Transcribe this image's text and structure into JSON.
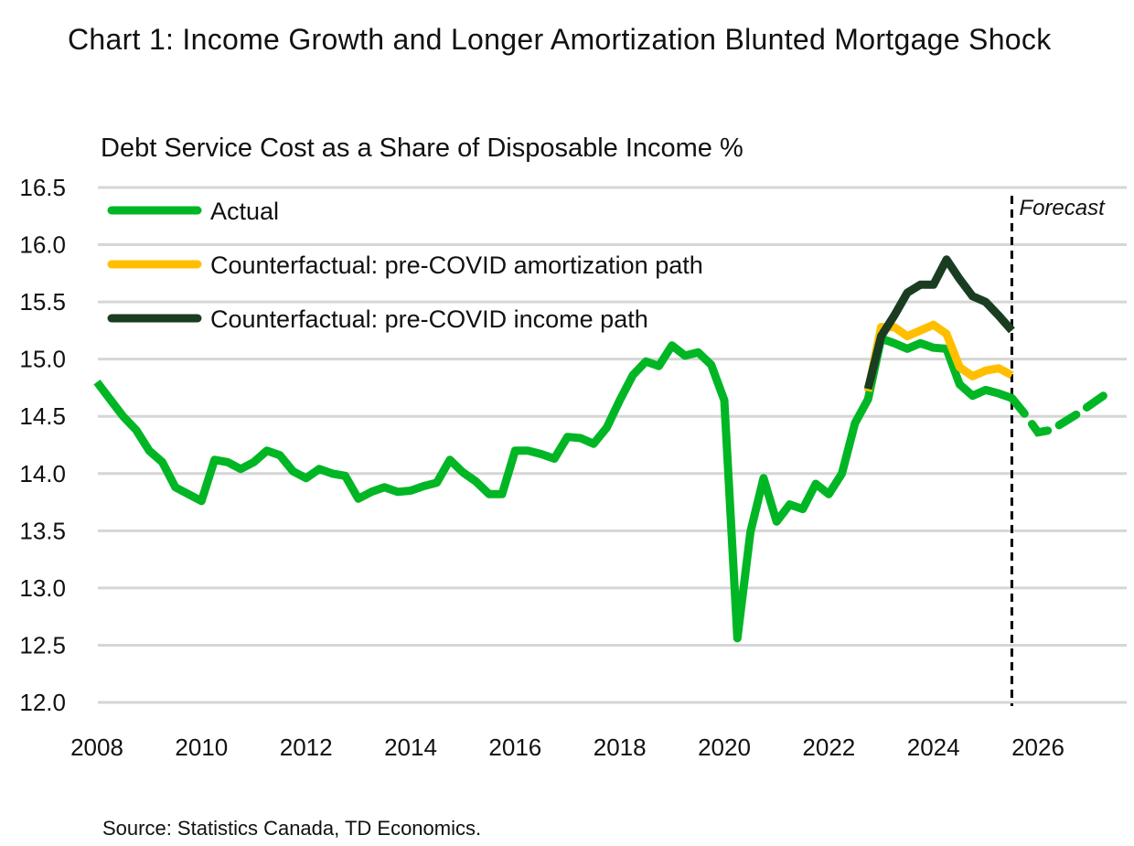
{
  "chart_data": {
    "type": "line",
    "title": "Chart 1: Income Growth and Longer Amortization Blunted Mortgage Shock",
    "subtitle": "Debt Service Cost as a Share of Disposable Income %",
    "source": "Source: Statistics Canada, TD Economics.",
    "xlabel": "",
    "ylabel": "",
    "frequency": "quarterly",
    "x_start": "2008Q1",
    "xlim": [
      2008,
      2027.75
    ],
    "ylim": [
      12.0,
      16.5
    ],
    "x_ticks": [
      "2008",
      "2010",
      "2012",
      "2014",
      "2016",
      "2018",
      "2020",
      "2022",
      "2024",
      "2026"
    ],
    "y_ticks": [
      "12.0",
      "12.5",
      "13.0",
      "13.5",
      "14.0",
      "14.5",
      "15.0",
      "15.5",
      "16.0",
      "16.5"
    ],
    "grid": "horizontal",
    "legend_position": "top-left",
    "forecast_label": "Forecast",
    "forecast_start": "2025Q3",
    "series": [
      {
        "name": "Actual",
        "color": "#00B624",
        "start": "2008Q1",
        "values": [
          14.8,
          14.65,
          14.5,
          14.38,
          14.2,
          14.1,
          13.88,
          13.82,
          13.76,
          14.12,
          14.1,
          14.04,
          14.1,
          14.2,
          14.16,
          14.02,
          13.96,
          14.04,
          14.0,
          13.98,
          13.78,
          13.84,
          13.88,
          13.84,
          13.85,
          13.89,
          13.92,
          14.12,
          14.01,
          13.93,
          13.82,
          13.82,
          14.2,
          14.2,
          14.17,
          14.13,
          14.32,
          14.31,
          14.26,
          14.4,
          14.64,
          14.86,
          14.98,
          14.94,
          15.12,
          15.03,
          15.06,
          14.95,
          14.64,
          12.56,
          13.49,
          13.96,
          13.58,
          13.73,
          13.69,
          13.91,
          13.82,
          14.0,
          14.44,
          14.65,
          15.18,
          15.14,
          15.09,
          15.14,
          15.1,
          15.09,
          14.78,
          14.68,
          14.73,
          14.7,
          14.66
        ],
        "forecast_start": "2025Q3",
        "forecast_values": [
          14.66,
          14.52,
          14.36,
          14.38,
          14.45,
          14.52,
          14.6,
          14.68
        ]
      },
      {
        "name": "Counterfactual: pre-COVID amortization path",
        "color": "#FFBF00",
        "start": "2022Q4",
        "values": [
          14.72,
          15.28,
          15.28,
          15.2,
          15.25,
          15.3,
          15.22,
          14.93,
          14.85,
          14.9,
          14.92,
          14.86
        ]
      },
      {
        "name": "Counterfactual: pre-COVID income path",
        "color": "#1A3D22",
        "start": "2022Q4",
        "values": [
          14.74,
          15.2,
          15.38,
          15.58,
          15.65,
          15.65,
          15.87,
          15.7,
          15.55,
          15.5,
          15.38,
          15.25
        ]
      }
    ]
  }
}
